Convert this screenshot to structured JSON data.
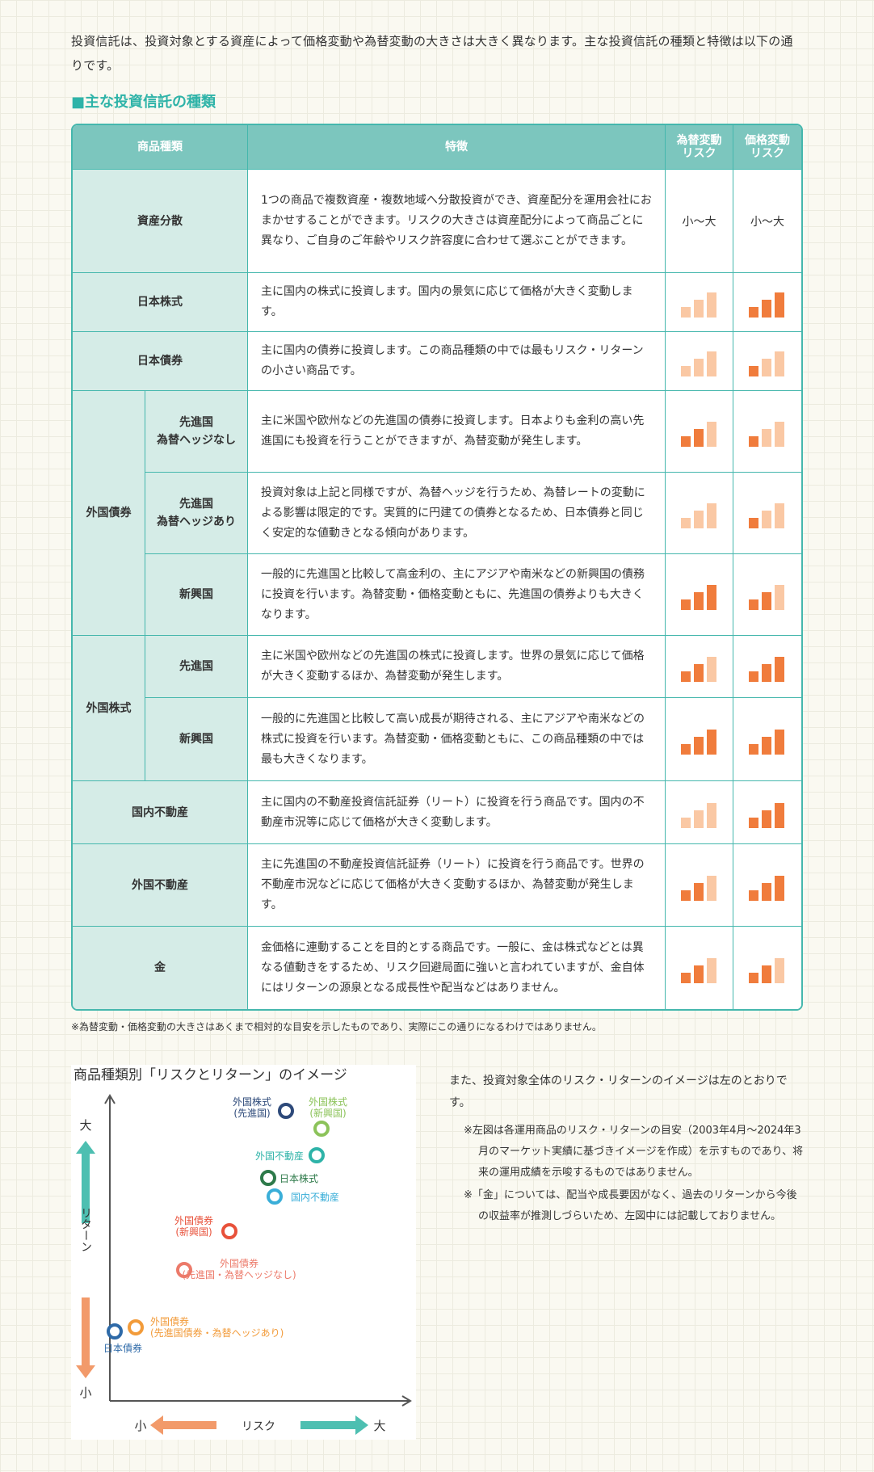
{
  "intro": "投資信託は、投資対象とする資産によって価格変動や為替変動の大きさは大きく異なります。主な投資信託の種類と特徴は以下の通りです。",
  "section_title": "■主な投資信託の種類",
  "table": {
    "headers": {
      "category": "商品種類",
      "feature": "特徴",
      "fx_risk": "為替変動\nリスク",
      "price_risk": "価格変動\nリスク"
    },
    "rows": [
      {
        "group": "資産分散",
        "feature": "1つの商品で複数資産・複数地域へ分散投資ができ、資産配分を運用会社におまかせすることができます。リスクの大きさは資産配分によって商品ごとに異なり、ご自身のご年齢やリスク許容度に合わせて選ぶことができます。",
        "fx_text": "小〜大",
        "price_text": "小〜大"
      },
      {
        "group": "日本株式",
        "feature": "主に国内の株式に投資します。国内の景気に応じて価格が大きく変動します。",
        "fx": 0,
        "price": 3
      },
      {
        "group": "日本債券",
        "feature": "主に国内の債券に投資します。この商品種類の中では最もリスク・リターンの小さい商品です。",
        "fx": 0,
        "price": 1
      },
      {
        "group": "外国債券",
        "sub": "先進国\n為替ヘッジなし",
        "feature": "主に米国や欧州などの先進国の債券に投資します。日本よりも金利の高い先進国にも投資を行うことができますが、為替変動が発生します。",
        "fx": 2,
        "price": 1
      },
      {
        "group": "外国債券",
        "sub": "先進国\n為替ヘッジあり",
        "feature": "投資対象は上記と同様ですが、為替ヘッジを行うため、為替レートの変動による影響は限定的です。実質的に円建ての債券となるため、日本債券と同じく安定的な値動きとなる傾向があります。",
        "fx": 0,
        "price": 1
      },
      {
        "group": "外国債券",
        "sub": "新興国",
        "feature": "一般的に先進国と比較して高金利の、主にアジアや南米などの新興国の債務に投資を行います。為替変動・価格変動ともに、先進国の債券よりも大きくなります。",
        "fx": 3,
        "price": 2
      },
      {
        "group": "外国株式",
        "sub": "先進国",
        "feature": "主に米国や欧州などの先進国の株式に投資します。世界の景気に応じて価格が大きく変動するほか、為替変動が発生します。",
        "fx": 2,
        "price": 3
      },
      {
        "group": "外国株式",
        "sub": "新興国",
        "feature": "一般的に先進国と比較して高い成長が期待される、主にアジアや南米などの株式に投資を行います。為替変動・価格変動ともに、この商品種類の中では最も大きくなります。",
        "fx": 3,
        "price": 3
      },
      {
        "group": "国内不動産",
        "feature": "主に国内の不動産投資信託証券（リート）に投資を行う商品です。国内の不動産市況等に応じて価格が大きく変動します。",
        "fx": 0,
        "price": 3
      },
      {
        "group": "外国不動産",
        "feature": "主に先進国の不動産投資信託証券（リート）に投資を行う商品です。世界の不動産市況などに応じて価格が大きく変動するほか、為替変動が発生します。",
        "fx": 2,
        "price": 3
      },
      {
        "group": "金",
        "feature": "金価格に連動することを目的とする商品です。一般に、金は株式などとは異なる値動きをするため、リスク回避局面に強いと言われていますが、金自体にはリターンの源泉となる成長性や配当などはありません。",
        "fx": 2,
        "price": 2
      }
    ]
  },
  "note": "※為替変動・価格変動の大きさはあくまで相対的な目安を示したものであり、実際にこの通りになるわけではありません。",
  "chart": {
    "title": "商品種類別「リスクとリターン」のイメージ",
    "y_label": "リターン",
    "y_high": "大",
    "y_low": "小",
    "x_label": "リスク",
    "x_low": "小",
    "x_high": "大",
    "points": [
      {
        "label": "外国株式\n(先進国)",
        "color": "#2e4a7a"
      },
      {
        "label": "外国株式\n(新興国)",
        "color": "#8cc35a"
      },
      {
        "label": "外国不動産",
        "color": "#2eb3a8"
      },
      {
        "label": "日本株式",
        "color": "#2e7a4a"
      },
      {
        "label": "国内不動産",
        "color": "#3aaed8"
      },
      {
        "label": "外国債券\n(新興国)",
        "color": "#e8513a"
      },
      {
        "label": "外国債券\n(先進国・為替ヘッジなし)",
        "color": "#ec7a6a"
      },
      {
        "label": "外国債券\n(先進国債券・為替ヘッジあり)",
        "color": "#f29b3a"
      },
      {
        "label": "日本債券",
        "color": "#2e6aa8"
      }
    ]
  },
  "right_text": {
    "main": "また、投資対象全体のリスク・リターンのイメージは左のとおりです。",
    "note1": "※左図は各運用商品のリスク・リターンの目安（2003年4月〜2024年3月のマーケット実績に基づきイメージを作成）を示すものであり、将来の運用成績を示唆するものではありません。",
    "note2": "※「金」については、配当や成長要因がなく、過去のリターンから今後の収益率が推測しづらいため、左図中には記載しておりません。"
  },
  "colors": {
    "accent": "#2eb3a8",
    "bar_dark": "#f07c3c",
    "bar_light": "#fac8a4",
    "header_bg": "#7cc6be",
    "cat_bg": "#d5ece7"
  }
}
